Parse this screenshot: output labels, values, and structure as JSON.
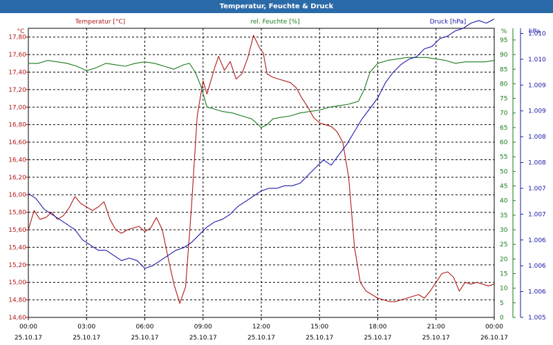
{
  "window": {
    "title": "Temperatur, Feuchte & Druck"
  },
  "colors": {
    "temperature": "#b01818",
    "humidity": "#1a7a1a",
    "pressure": "#1818a8",
    "grid": "#000000",
    "titlebar": "#2b6aa8"
  },
  "chart_data": {
    "type": "line",
    "title": "Temperatur, Feuchte & Druck",
    "grid": true,
    "x": {
      "labels": [
        {
          "time": "00:00",
          "date": "25.10.17"
        },
        {
          "time": "03:00",
          "date": "25.10.17"
        },
        {
          "time": "06:00",
          "date": "25.10.17"
        },
        {
          "time": "09:00",
          "date": "25.10.17"
        },
        {
          "time": "12:00",
          "date": "25.10.17"
        },
        {
          "time": "15:00",
          "date": "25.10.17"
        },
        {
          "time": "18:00",
          "date": "25.10.17"
        },
        {
          "time": "21:00",
          "date": "25.10.17"
        },
        {
          "time": "00:00",
          "date": "26.10.17"
        }
      ],
      "range_hours": [
        0,
        24
      ]
    },
    "axes": {
      "left": {
        "unit": "°C",
        "ticks": [
          "14,60",
          "14,80",
          "15,00",
          "15,20",
          "15,40",
          "15,60",
          "15,80",
          "16,00",
          "16,20",
          "16,40",
          "16,60",
          "16,80",
          "17,00",
          "17,20",
          "17,40",
          "17,60",
          "17,80"
        ],
        "range": [
          14.6,
          17.9
        ]
      },
      "humidity": {
        "unit": "%",
        "ticks": [
          "0",
          "5",
          "10",
          "15",
          "20",
          "25",
          "30",
          "35",
          "40",
          "45",
          "50",
          "55",
          "60",
          "65",
          "70",
          "75",
          "80",
          "85",
          "90",
          "95"
        ],
        "range": [
          0,
          99
        ]
      },
      "right": {
        "unit": "hPa",
        "ticks": [
          "1.005",
          "1.006",
          "1.006",
          "1.006",
          "1.007",
          "1.007",
          "1.008",
          "1.008",
          "1.009",
          "1.009",
          "1.010",
          "1.010"
        ],
        "range": [
          1005.0,
          1010.6
        ]
      }
    },
    "series": [
      {
        "name": "Temperatur [°C]",
        "axis": "left",
        "x": [
          0,
          0.3,
          0.6,
          0.9,
          1.2,
          1.5,
          1.8,
          2.1,
          2.4,
          2.7,
          3.0,
          3.3,
          3.6,
          3.9,
          4.2,
          4.5,
          4.8,
          5.1,
          5.4,
          5.7,
          6.0,
          6.3,
          6.6,
          6.9,
          7.2,
          7.5,
          7.8,
          8.1,
          8.4,
          8.7,
          9.0,
          9.2,
          9.4,
          9.6,
          9.8,
          10.1,
          10.4,
          10.7,
          11.0,
          11.3,
          11.6,
          11.9,
          12.1,
          12.3,
          12.6,
          12.9,
          13.2,
          13.5,
          13.8,
          14.1,
          14.4,
          14.7,
          15.0,
          15.3,
          15.6,
          15.9,
          16.2,
          16.5,
          16.8,
          17.1,
          17.4,
          17.7,
          18.0,
          18.3,
          18.6,
          18.9,
          19.2,
          19.5,
          19.8,
          20.1,
          20.4,
          20.7,
          21.0,
          21.3,
          21.6,
          21.9,
          22.2,
          22.5,
          22.8,
          23.1,
          23.4,
          23.7,
          24.0
        ],
        "y": [
          15.6,
          15.82,
          15.72,
          15.74,
          15.8,
          15.72,
          15.76,
          15.85,
          15.98,
          15.9,
          15.86,
          15.82,
          15.86,
          15.92,
          15.72,
          15.6,
          15.56,
          15.6,
          15.62,
          15.64,
          15.58,
          15.62,
          15.74,
          15.6,
          15.28,
          14.98,
          14.76,
          14.95,
          15.85,
          16.9,
          17.3,
          17.15,
          17.3,
          17.45,
          17.58,
          17.42,
          17.52,
          17.32,
          17.38,
          17.56,
          17.82,
          17.68,
          17.62,
          17.38,
          17.34,
          17.32,
          17.3,
          17.28,
          17.22,
          17.1,
          17.0,
          16.88,
          16.82,
          16.8,
          16.78,
          16.72,
          16.6,
          16.2,
          15.4,
          15.0,
          14.9,
          14.86,
          14.82,
          14.8,
          14.78,
          14.78,
          14.8,
          14.82,
          14.84,
          14.86,
          14.82,
          14.9,
          15.0,
          15.1,
          15.12,
          15.06,
          14.9,
          15.0,
          14.98,
          15.0,
          14.98,
          14.96,
          14.98
        ]
      },
      {
        "name": "rel. Feuchte [%]",
        "axis": "humidity",
        "x": [
          0,
          0.5,
          1.0,
          1.5,
          2.0,
          2.5,
          3.0,
          3.5,
          4.0,
          4.5,
          5.0,
          5.5,
          6.0,
          6.5,
          7.0,
          7.5,
          8.0,
          8.3,
          8.6,
          8.9,
          9.2,
          9.5,
          10.0,
          10.5,
          11.0,
          11.5,
          12.0,
          12.3,
          12.6,
          13.0,
          13.5,
          14.0,
          14.5,
          15.0,
          15.5,
          16.0,
          16.5,
          17.0,
          17.3,
          17.6,
          18.0,
          18.5,
          19.0,
          19.5,
          20.0,
          20.5,
          21.0,
          21.5,
          22.0,
          22.5,
          23.0,
          23.5,
          24.0
        ],
        "y": [
          87,
          87,
          88,
          87.5,
          87,
          86,
          84.5,
          85.5,
          87,
          86.5,
          86,
          87,
          87.5,
          87,
          86,
          85,
          86.5,
          87,
          84,
          79,
          72,
          71.5,
          70.5,
          70,
          69,
          68,
          65,
          66,
          68,
          68.5,
          69,
          70,
          70.5,
          71,
          72,
          72.5,
          73,
          74,
          78,
          84,
          87,
          88,
          88.5,
          89,
          89,
          89,
          88.5,
          88,
          87,
          87.5,
          87.5,
          87.5,
          88
        ]
      },
      {
        "name": "Druck [hPa]",
        "axis": "right",
        "x": [
          0,
          0.4,
          0.8,
          1.2,
          1.6,
          2.0,
          2.4,
          2.8,
          3.2,
          3.6,
          4.0,
          4.4,
          4.8,
          5.2,
          5.6,
          6.0,
          6.4,
          6.8,
          7.2,
          7.6,
          8.0,
          8.4,
          8.8,
          9.2,
          9.6,
          10.0,
          10.4,
          10.8,
          11.2,
          11.6,
          12.0,
          12.4,
          12.8,
          13.2,
          13.6,
          14.0,
          14.4,
          14.8,
          15.2,
          15.6,
          16.0,
          16.4,
          16.8,
          17.2,
          17.6,
          18.0,
          18.4,
          18.8,
          19.2,
          19.6,
          20.0,
          20.4,
          20.8,
          21.2,
          21.6,
          22.0,
          22.4,
          22.8,
          23.2,
          23.6,
          24.0
        ],
        "y": [
          1007.4,
          1007.3,
          1007.1,
          1007.0,
          1006.9,
          1006.8,
          1006.7,
          1006.5,
          1006.4,
          1006.3,
          1006.3,
          1006.2,
          1006.1,
          1006.15,
          1006.1,
          1005.95,
          1006.0,
          1006.1,
          1006.2,
          1006.3,
          1006.35,
          1006.45,
          1006.6,
          1006.75,
          1006.85,
          1006.9,
          1007.0,
          1007.15,
          1007.25,
          1007.35,
          1007.45,
          1007.5,
          1007.5,
          1007.55,
          1007.55,
          1007.6,
          1007.75,
          1007.9,
          1008.05,
          1007.95,
          1008.15,
          1008.35,
          1008.6,
          1008.85,
          1009.05,
          1009.25,
          1009.55,
          1009.75,
          1009.9,
          1010.0,
          1010.05,
          1010.2,
          1010.25,
          1010.4,
          1010.45,
          1010.55,
          1010.6,
          1010.7,
          1010.75,
          1010.7,
          1010.78
        ]
      }
    ]
  }
}
